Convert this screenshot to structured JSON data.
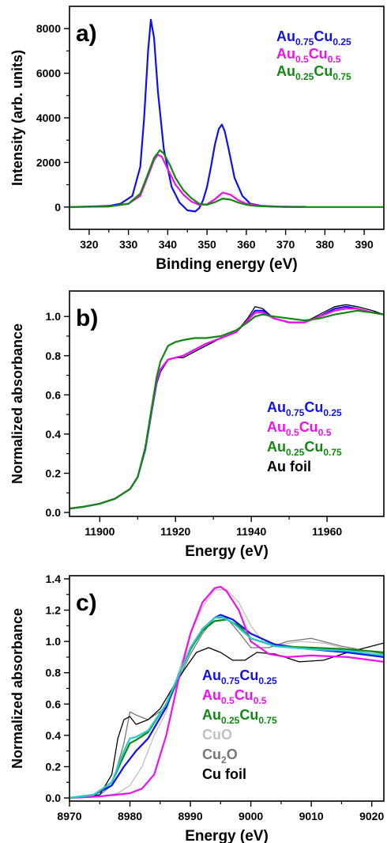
{
  "figure": {
    "panels": [
      {
        "label": "a)",
        "xlabel": "Binding energy (eV)",
        "ylabel": "Intensity (arb. units)",
        "legend": [
          {
            "main1": "Au",
            "sub1": "0.75",
            "main2": "Cu",
            "sub2": "0.25",
            "color": "#1010ee"
          },
          {
            "main1": "Au",
            "sub1": "0.5",
            "main2": "Cu",
            "sub2": "0.5",
            "color": "#ee10ee"
          },
          {
            "main1": "Au",
            "sub1": "0.25",
            "main2": "Cu",
            "sub2": "0.75",
            "color": "#118811"
          }
        ]
      },
      {
        "label": "b)",
        "xlabel": "Energy (eV)",
        "ylabel": "Normalized absorbance",
        "legend": [
          {
            "main1": "Au",
            "sub1": "0.75",
            "main2": "Cu",
            "sub2": "0.25",
            "color": "#1010ee"
          },
          {
            "main1": "Au",
            "sub1": "0.5",
            "main2": "Cu",
            "sub2": "0.5",
            "color": "#ee10ee"
          },
          {
            "main1": "Au",
            "sub1": "0.25",
            "main2": "Cu",
            "sub2": "0.75",
            "color": "#118811"
          },
          {
            "main1": "Au foil",
            "sub1": "",
            "main2": "",
            "sub2": "",
            "color": "#000000"
          }
        ]
      },
      {
        "label": "c)",
        "xlabel": "Energy (eV)",
        "ylabel": "Normalized absorbance",
        "legend": [
          {
            "main1": "Au",
            "sub1": "0.75",
            "main2": "Cu",
            "sub2": "0.25",
            "color": "#1010ee"
          },
          {
            "main1": "Au",
            "sub1": "0.5",
            "main2": "Cu",
            "sub2": "0.5",
            "color": "#ee10ee"
          },
          {
            "main1": "Au",
            "sub1": "0.25",
            "main2": "Cu",
            "sub2": "0.75",
            "color": "#118811"
          },
          {
            "main1": "CuO",
            "sub1": "",
            "main2": "",
            "sub2": "",
            "color": "#c0c0c0"
          },
          {
            "main1": "Cu",
            "sub1": "2",
            "main2": "O",
            "sub2": "",
            "color": "#777777"
          },
          {
            "main1": "Cu foil",
            "sub1": "",
            "main2": "",
            "sub2": "",
            "color": "#000000"
          }
        ]
      }
    ]
  },
  "chart_data": [
    {
      "type": "line",
      "title": "",
      "xlabel": "Binding energy (eV)",
      "ylabel": "Intensity (arb. units)",
      "xlim": [
        315,
        395
      ],
      "ylim": [
        -1000,
        9000
      ],
      "xticks": [
        320,
        330,
        340,
        350,
        360,
        370,
        380,
        390
      ],
      "yticks": [
        0,
        2000,
        4000,
        6000,
        8000
      ],
      "legend_position": "top-right",
      "series": [
        {
          "name": "Au0.75Cu0.25",
          "color": "#1010ee",
          "x": [
            315,
            325,
            328,
            331,
            333,
            334,
            335,
            335.7,
            336.5,
            337.5,
            339,
            341,
            343,
            345,
            347,
            348,
            349,
            350,
            351,
            352,
            353,
            353.8,
            354.5,
            355.5,
            357,
            359,
            361,
            364,
            368,
            372,
            375
          ],
          "y": [
            0,
            50,
            150,
            500,
            1800,
            4000,
            7000,
            8400,
            7600,
            5200,
            2600,
            900,
            200,
            -150,
            -200,
            -50,
            300,
            900,
            1800,
            2800,
            3500,
            3700,
            3400,
            2600,
            1300,
            500,
            150,
            50,
            20,
            10,
            10
          ]
        },
        {
          "name": "Au0.5Cu0.5",
          "color": "#ee10ee",
          "x": [
            315,
            325,
            330,
            333,
            335,
            336.5,
            337.5,
            338.5,
            340,
            342,
            344,
            346,
            348,
            350,
            352,
            354,
            356,
            358,
            360,
            363,
            366,
            370,
            375
          ],
          "y": [
            0,
            20,
            150,
            500,
            1400,
            2100,
            2350,
            2250,
            1700,
            1000,
            550,
            250,
            100,
            120,
            350,
            650,
            550,
            300,
            150,
            60,
            20,
            10,
            0
          ]
        },
        {
          "name": "Au0.25Cu0.75",
          "color": "#118811",
          "x": [
            315,
            325,
            330,
            333,
            335,
            336.5,
            338,
            339,
            340.5,
            342,
            344,
            346,
            348,
            350,
            352,
            354,
            356,
            358,
            360,
            363,
            366,
            370,
            380,
            395
          ],
          "y": [
            0,
            20,
            150,
            600,
            1500,
            2200,
            2550,
            2400,
            1900,
            1300,
            750,
            400,
            150,
            100,
            220,
            380,
            330,
            200,
            100,
            40,
            20,
            0,
            0,
            0
          ]
        }
      ]
    },
    {
      "type": "line",
      "title": "",
      "xlabel": "Energy (eV)",
      "ylabel": "Normalized absorbance",
      "xlim": [
        11892,
        11975
      ],
      "ylim": [
        -0.02,
        1.13
      ],
      "xticks": [
        11900,
        11920,
        11940,
        11960
      ],
      "yticks": [
        0.0,
        0.2,
        0.4,
        0.6,
        0.8,
        1.0
      ],
      "legend_position": "bottom-right",
      "series": [
        {
          "name": "Au foil",
          "color": "#000000",
          "x": [
            11892,
            11896,
            11900,
            11904,
            11908,
            11910,
            11912,
            11914,
            11915,
            11916,
            11918,
            11920,
            11922,
            11925,
            11928,
            11932,
            11936,
            11939,
            11941,
            11943,
            11946,
            11950,
            11954,
            11958,
            11962,
            11965,
            11968,
            11972,
            11975
          ],
          "y": [
            0.02,
            0.03,
            0.045,
            0.07,
            0.12,
            0.18,
            0.32,
            0.55,
            0.66,
            0.72,
            0.78,
            0.79,
            0.79,
            0.82,
            0.85,
            0.89,
            0.92,
            0.99,
            1.05,
            1.04,
            0.99,
            0.97,
            0.97,
            1.01,
            1.05,
            1.06,
            1.05,
            1.03,
            1.01
          ]
        },
        {
          "name": "Au0.75Cu0.25",
          "color": "#1010ee",
          "x": [
            11892,
            11896,
            11900,
            11904,
            11908,
            11910,
            11912,
            11914,
            11915,
            11916,
            11918,
            11920,
            11922,
            11925,
            11928,
            11932,
            11936,
            11939,
            11941,
            11943,
            11946,
            11950,
            11954,
            11958,
            11962,
            11965,
            11968,
            11972,
            11975
          ],
          "y": [
            0.02,
            0.03,
            0.045,
            0.07,
            0.12,
            0.18,
            0.32,
            0.55,
            0.66,
            0.72,
            0.78,
            0.79,
            0.8,
            0.83,
            0.86,
            0.89,
            0.92,
            0.98,
            1.03,
            1.03,
            0.99,
            0.97,
            0.97,
            1.0,
            1.04,
            1.05,
            1.04,
            1.02,
            1.01
          ]
        },
        {
          "name": "Au0.5Cu0.5",
          "color": "#ee10ee",
          "x": [
            11892,
            11896,
            11900,
            11904,
            11908,
            11910,
            11912,
            11914,
            11915,
            11916,
            11918,
            11920,
            11922,
            11925,
            11928,
            11932,
            11936,
            11939,
            11941,
            11943,
            11946,
            11950,
            11954,
            11958,
            11962,
            11965,
            11968,
            11972,
            11975
          ],
          "y": [
            0.02,
            0.03,
            0.045,
            0.07,
            0.12,
            0.18,
            0.33,
            0.56,
            0.67,
            0.73,
            0.78,
            0.79,
            0.8,
            0.83,
            0.86,
            0.89,
            0.92,
            0.98,
            1.02,
            1.02,
            0.99,
            0.97,
            0.97,
            1.0,
            1.03,
            1.04,
            1.04,
            1.02,
            1.01
          ]
        },
        {
          "name": "Au0.25Cu0.75",
          "color": "#118811",
          "x": [
            11892,
            11896,
            11900,
            11904,
            11908,
            11910,
            11912,
            11914,
            11915,
            11916,
            11918,
            11920,
            11922,
            11925,
            11928,
            11932,
            11936,
            11939,
            11941,
            11943,
            11946,
            11950,
            11954,
            11958,
            11962,
            11965,
            11968,
            11972,
            11975
          ],
          "y": [
            0.02,
            0.03,
            0.045,
            0.07,
            0.12,
            0.18,
            0.33,
            0.57,
            0.69,
            0.77,
            0.85,
            0.87,
            0.88,
            0.89,
            0.89,
            0.9,
            0.93,
            0.97,
            1.0,
            1.01,
            1.0,
            0.99,
            0.98,
            0.99,
            1.01,
            1.02,
            1.03,
            1.02,
            1.01
          ]
        }
      ]
    },
    {
      "type": "line",
      "title": "",
      "xlabel": "Energy (eV)",
      "ylabel": "Normalized absorbance",
      "xlim": [
        8970,
        9022
      ],
      "ylim": [
        -0.02,
        1.42
      ],
      "xticks": [
        8970,
        8980,
        8990,
        9000,
        9010,
        9020
      ],
      "yticks": [
        0.0,
        0.2,
        0.4,
        0.6,
        0.8,
        1.0,
        1.2,
        1.4
      ],
      "legend_position": "bottom-center",
      "series": [
        {
          "name": "CuO",
          "color": "#c0c0c0",
          "x": [
            8970,
            8975,
            8978,
            8980,
            8982,
            8984,
            8986,
            8988,
            8990,
            8992,
            8994,
            8996,
            8998,
            9000,
            9002,
            9005,
            9008,
            9012,
            9016,
            9022
          ],
          "y": [
            0.0,
            0.01,
            0.03,
            0.08,
            0.2,
            0.4,
            0.55,
            0.8,
            1.05,
            1.22,
            1.33,
            1.33,
            1.25,
            1.1,
            1.0,
            0.98,
            1.0,
            0.99,
            0.95,
            0.9
          ]
        },
        {
          "name": "Cu2O",
          "color": "#777777",
          "x": [
            8970,
            8975,
            8977,
            8979,
            8980,
            8981,
            8983,
            8986,
            8988,
            8990,
            8992,
            8994,
            8996,
            8998,
            9000,
            9003,
            9006,
            9010,
            9015,
            9022
          ],
          "y": [
            0.0,
            0.02,
            0.08,
            0.35,
            0.55,
            0.53,
            0.5,
            0.58,
            0.75,
            0.92,
            1.05,
            1.15,
            1.15,
            1.06,
            0.96,
            0.96,
            1.0,
            1.02,
            0.97,
            0.92
          ]
        },
        {
          "name": "Cu foil",
          "color": "#000000",
          "x": [
            8970,
            8975,
            8977,
            8978,
            8979,
            8980,
            8981,
            8983,
            8985,
            8987,
            8989,
            8991,
            8993,
            8995,
            8997,
            8999,
            9001,
            9004,
            9008,
            9012,
            9016,
            9022
          ],
          "y": [
            0.0,
            0.02,
            0.15,
            0.38,
            0.5,
            0.52,
            0.47,
            0.5,
            0.57,
            0.7,
            0.82,
            0.93,
            0.96,
            0.93,
            0.88,
            0.88,
            0.93,
            0.92,
            0.87,
            0.88,
            0.93,
            0.99
          ]
        },
        {
          "name": "Au0.75Cu0.25",
          "color": "#1010ee",
          "x": [
            8970,
            8974,
            8977,
            8979,
            8981,
            8983,
            8986,
            8988,
            8990,
            8992,
            8994,
            8995,
            8997,
            9000,
            9004,
            9010,
            9016,
            9022
          ],
          "y": [
            0.0,
            0.02,
            0.08,
            0.2,
            0.3,
            0.38,
            0.58,
            0.78,
            0.95,
            1.08,
            1.15,
            1.17,
            1.14,
            1.05,
            0.98,
            0.95,
            0.93,
            0.9
          ]
        },
        {
          "name": "Au0.5Cu0.5",
          "color": "#ee10ee",
          "x": [
            8970,
            8975,
            8980,
            8982,
            8984,
            8986,
            8988,
            8990,
            8992,
            8994,
            8995,
            8996,
            8998,
            9000,
            9003,
            9006,
            9010,
            9016,
            9022
          ],
          "y": [
            0.0,
            0.01,
            0.03,
            0.06,
            0.15,
            0.4,
            0.75,
            1.05,
            1.25,
            1.34,
            1.35,
            1.32,
            1.2,
            1.0,
            0.92,
            0.9,
            0.91,
            0.9,
            0.87
          ]
        },
        {
          "name": "Au0.25Cu0.75",
          "color": "#118811",
          "x": [
            8970,
            8974,
            8977,
            8979,
            8980,
            8981,
            8983,
            8986,
            8988,
            8990,
            8992,
            8994,
            8996,
            8998,
            9000,
            9004,
            9010,
            9016,
            9022
          ],
          "y": [
            0.0,
            0.02,
            0.1,
            0.27,
            0.35,
            0.37,
            0.42,
            0.6,
            0.78,
            0.95,
            1.07,
            1.13,
            1.14,
            1.1,
            1.02,
            0.97,
            0.96,
            0.95,
            0.93
          ]
        },
        {
          "name": "",
          "color": "#22cccc",
          "x": [
            8970,
            8974,
            8977,
            8979,
            8980,
            8981,
            8983,
            8986,
            8988,
            8990,
            8992,
            8994,
            8995,
            8997,
            9000,
            9004,
            9010,
            9016,
            9022
          ],
          "y": [
            0.0,
            0.02,
            0.1,
            0.3,
            0.38,
            0.39,
            0.43,
            0.6,
            0.78,
            0.96,
            1.08,
            1.15,
            1.16,
            1.12,
            1.02,
            0.97,
            0.95,
            0.94,
            0.91
          ]
        }
      ]
    }
  ]
}
